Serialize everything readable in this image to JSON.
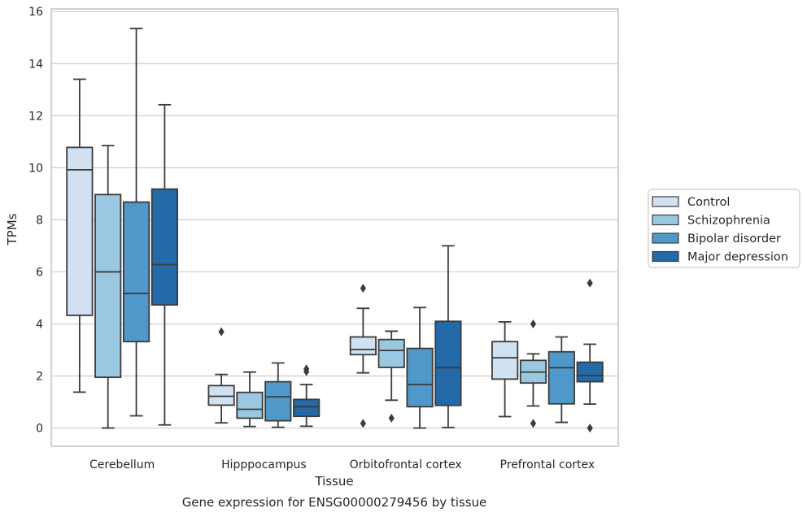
{
  "chart_data": {
    "type": "box",
    "caption": "Gene expression for ENSG00000279456 by tissue",
    "xlabel": "Tissue",
    "ylabel": "TPMs",
    "ylim": [
      -0.7,
      16.1
    ],
    "yticks": [
      0,
      2,
      4,
      6,
      8,
      10,
      12,
      14,
      16
    ],
    "grid": "horizontal",
    "legend_placement": "right",
    "categories": [
      "Cerebellum",
      "Hipppocampus",
      "Orbitofrontal cortex",
      "Prefrontal cortex"
    ],
    "series": [
      {
        "name": "Control",
        "color": "#d0e1f2",
        "boxes": [
          {
            "whisker_low": 1.38,
            "q1": 4.33,
            "median": 9.92,
            "q3": 10.78,
            "whisker_high": 13.4,
            "outliers": []
          },
          {
            "whisker_low": 0.2,
            "q1": 0.88,
            "median": 1.22,
            "q3": 1.63,
            "whisker_high": 2.06,
            "outliers": [
              3.7
            ]
          },
          {
            "whisker_low": 2.12,
            "q1": 2.82,
            "median": 3.02,
            "q3": 3.5,
            "whisker_high": 4.6,
            "outliers": [
              5.37,
              0.18
            ]
          },
          {
            "whisker_low": 0.44,
            "q1": 1.88,
            "median": 2.7,
            "q3": 3.32,
            "whisker_high": 4.08,
            "outliers": []
          }
        ]
      },
      {
        "name": "Schizophrenia",
        "color": "#9ac8e0",
        "boxes": [
          {
            "whisker_low": 0.0,
            "q1": 1.95,
            "median": 6.0,
            "q3": 8.97,
            "whisker_high": 10.85,
            "outliers": []
          },
          {
            "whisker_low": 0.06,
            "q1": 0.38,
            "median": 0.72,
            "q3": 1.37,
            "whisker_high": 2.15,
            "outliers": []
          },
          {
            "whisker_low": 1.07,
            "q1": 2.33,
            "median": 2.98,
            "q3": 3.4,
            "whisker_high": 3.72,
            "outliers": [
              0.38
            ]
          },
          {
            "whisker_low": 0.85,
            "q1": 1.73,
            "median": 2.15,
            "q3": 2.6,
            "whisker_high": 2.85,
            "outliers": [
              4.0,
              0.18
            ]
          }
        ]
      },
      {
        "name": "Bipolar disorder",
        "color": "#5098c9",
        "boxes": [
          {
            "whisker_low": 0.47,
            "q1": 3.32,
            "median": 5.17,
            "q3": 8.68,
            "whisker_high": 15.35,
            "outliers": []
          },
          {
            "whisker_low": 0.03,
            "q1": 0.28,
            "median": 1.2,
            "q3": 1.78,
            "whisker_high": 2.5,
            "outliers": []
          },
          {
            "whisker_low": 0.0,
            "q1": 0.82,
            "median": 1.67,
            "q3": 3.06,
            "whisker_high": 4.63,
            "outliers": []
          },
          {
            "whisker_low": 0.22,
            "q1": 0.93,
            "median": 2.32,
            "q3": 2.93,
            "whisker_high": 3.5,
            "outliers": []
          }
        ]
      },
      {
        "name": "Major depression",
        "color": "#2469a8",
        "boxes": [
          {
            "whisker_low": 0.12,
            "q1": 4.73,
            "median": 6.28,
            "q3": 9.18,
            "whisker_high": 12.42,
            "outliers": []
          },
          {
            "whisker_low": 0.07,
            "q1": 0.45,
            "median": 0.82,
            "q3": 1.1,
            "whisker_high": 1.67,
            "outliers": [
              2.27,
              2.17
            ]
          },
          {
            "whisker_low": 0.02,
            "q1": 0.87,
            "median": 2.32,
            "q3": 4.1,
            "whisker_high": 7.0,
            "outliers": []
          },
          {
            "whisker_low": 0.92,
            "q1": 1.78,
            "median": 2.02,
            "q3": 2.53,
            "whisker_high": 3.22,
            "outliers": [
              5.57,
              0.0
            ]
          }
        ]
      }
    ]
  }
}
